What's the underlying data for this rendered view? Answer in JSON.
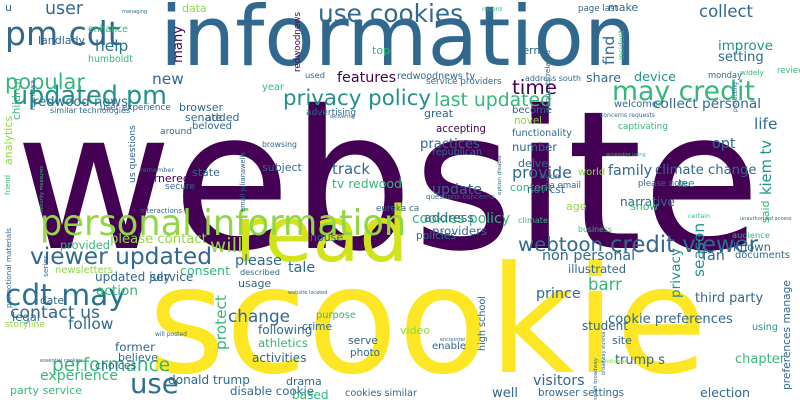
{
  "palette": {
    "dark_purple": "#440154",
    "blue": "#31688e",
    "teal": "#21918c",
    "green": "#35b779",
    "light_green": "#90d743",
    "yellow": "#fde725"
  },
  "words": [
    {
      "t": "website",
      "c": "#440154"
    },
    {
      "t": "scookie",
      "c": "#fde725"
    },
    {
      "t": "information",
      "c": "#31688e"
    },
    {
      "t": "read",
      "c": "#d2e21b"
    },
    {
      "t": "personal information",
      "c": "#90d743"
    },
    {
      "t": "updated pm",
      "c": "#21918c"
    },
    {
      "t": "use cookies",
      "c": "#31688e"
    },
    {
      "t": "may credit",
      "c": "#35b779"
    },
    {
      "t": "pm cdt",
      "c": "#31688e"
    },
    {
      "t": "credit viewer",
      "c": "#31688e"
    },
    {
      "t": "viewer updated",
      "c": "#31688e"
    },
    {
      "t": "cdt may",
      "c": "#2c728e"
    },
    {
      "t": "series",
      "c": "#31688e"
    },
    {
      "t": "use",
      "c": "#2c728e"
    },
    {
      "t": "privacy policy",
      "c": "#21918c"
    },
    {
      "t": "popular",
      "c": "#35b779"
    },
    {
      "t": "time",
      "c": "#440154"
    },
    {
      "t": "last updated",
      "c": "#35b779"
    },
    {
      "t": "webtoon",
      "c": "#31688e"
    },
    {
      "t": "cookies policy",
      "c": "#35b779"
    },
    {
      "t": "third party",
      "c": "#31688e"
    },
    {
      "t": "contact us",
      "c": "#31688e"
    },
    {
      "t": "performance",
      "c": "#35b779"
    },
    {
      "t": "kiem tv",
      "c": "#21918c"
    },
    {
      "t": "cookie preferences",
      "c": "#31688e"
    },
    {
      "t": "will",
      "c": "#90d743"
    },
    {
      "t": "change",
      "c": "#31688e"
    },
    {
      "t": "user",
      "c": "#31688e"
    },
    {
      "t": "collect",
      "c": "#31688e"
    },
    {
      "t": "redwood news",
      "c": "#2c728e"
    },
    {
      "t": "update",
      "c": "#31688e"
    },
    {
      "t": "address",
      "c": "#31688e"
    },
    {
      "t": "barr",
      "c": "#35b779"
    },
    {
      "t": "provide",
      "c": "#31688e"
    },
    {
      "t": "new",
      "c": "#31688e"
    },
    {
      "t": "help",
      "c": "#2c728e"
    },
    {
      "t": "features",
      "c": "#440154"
    },
    {
      "t": "share",
      "c": "#31688e"
    },
    {
      "t": "device",
      "c": "#21918c"
    },
    {
      "t": "life",
      "c": "#31688e"
    },
    {
      "t": "opt",
      "c": "#31688e"
    },
    {
      "t": "find",
      "c": "#31688e"
    },
    {
      "t": "track",
      "c": "#31688e"
    },
    {
      "t": "practices",
      "c": "#31688e"
    },
    {
      "t": "family",
      "c": "#31688e"
    },
    {
      "t": "tv redwood",
      "c": "#35b779"
    },
    {
      "t": "collect personal",
      "c": "#31688e"
    },
    {
      "t": "improve",
      "c": "#21918c"
    },
    {
      "t": "setting",
      "c": "#31688e"
    },
    {
      "t": "climate change",
      "c": "#31688e"
    },
    {
      "t": "non personal",
      "c": "#31688e"
    },
    {
      "t": "illustrated",
      "c": "#31688e"
    },
    {
      "t": "providers",
      "c": "#31688e"
    },
    {
      "t": "privacy",
      "c": "#21918c"
    },
    {
      "t": "season",
      "c": "#21918c"
    },
    {
      "t": "chapter",
      "c": "#35b779"
    },
    {
      "t": "prince",
      "c": "#31688e"
    },
    {
      "t": "action",
      "c": "#35b779"
    },
    {
      "t": "follow",
      "c": "#31688e"
    },
    {
      "t": "experience",
      "c": "#35b779"
    },
    {
      "t": "essential cookies",
      "c": "#31688e"
    },
    {
      "t": "please",
      "c": "#31688e"
    },
    {
      "t": "tale",
      "c": "#31688e"
    },
    {
      "t": "visitors",
      "c": "#31688e"
    },
    {
      "t": "trump s",
      "c": "#31688e"
    },
    {
      "t": "fan",
      "c": "#31688e"
    },
    {
      "t": "known",
      "c": "#31688e"
    },
    {
      "t": "documents",
      "c": "#31688e"
    },
    {
      "t": "audience",
      "c": "#35b779"
    },
    {
      "t": "please contact",
      "c": "#90d743"
    },
    {
      "t": "provided",
      "c": "#35b779"
    },
    {
      "t": "newsletters",
      "c": "#90d743"
    },
    {
      "t": "consent",
      "c": "#35b779"
    },
    {
      "t": "updated july",
      "c": "#31688e"
    },
    {
      "t": "service",
      "c": "#31688e"
    },
    {
      "t": "date",
      "c": "#31688e"
    },
    {
      "t": "legal",
      "c": "#31688e"
    },
    {
      "t": "former",
      "c": "#31688e"
    },
    {
      "t": "following",
      "c": "#31688e"
    },
    {
      "t": "athletics",
      "c": "#35b779"
    },
    {
      "t": "activities",
      "c": "#31688e"
    },
    {
      "t": "donald trump",
      "c": "#31688e"
    },
    {
      "t": "disable cookie",
      "c": "#31688e"
    },
    {
      "t": "cookies similar",
      "c": "#31688e"
    },
    {
      "t": "browser settings",
      "c": "#31688e"
    },
    {
      "t": "party service",
      "c": "#35b779"
    },
    {
      "t": "high school",
      "c": "#31688e"
    },
    {
      "t": "election",
      "c": "#31688e"
    },
    {
      "t": "student",
      "c": "#31688e"
    },
    {
      "t": "using",
      "c": "#21918c"
    },
    {
      "t": "well",
      "c": "#31688e"
    },
    {
      "t": "based",
      "c": "#35b779"
    },
    {
      "t": "enable",
      "c": "#31688e"
    },
    {
      "t": "photo",
      "c": "#31688e"
    },
    {
      "t": "serve",
      "c": "#31688e"
    },
    {
      "t": "crime",
      "c": "#31688e"
    },
    {
      "t": "purpose",
      "c": "#35b779"
    },
    {
      "t": "protect",
      "c": "#35b779"
    },
    {
      "t": "address south",
      "c": "#31688e"
    },
    {
      "t": "redwoodnews tv",
      "c": "#31688e"
    },
    {
      "t": "advertising",
      "c": "#31688e"
    },
    {
      "t": "accepting",
      "c": "#440154"
    },
    {
      "t": "republican",
      "c": "#31688e"
    },
    {
      "t": "functionality",
      "c": "#31688e"
    },
    {
      "t": "number",
      "c": "#31688e"
    },
    {
      "t": "captivating",
      "c": "#35b779"
    },
    {
      "t": "narrative",
      "c": "#31688e"
    },
    {
      "t": "content",
      "c": "#35b779"
    },
    {
      "t": "delve",
      "c": "#31688e"
    },
    {
      "t": "nov cst",
      "c": "#31688e"
    },
    {
      "t": "age",
      "c": "#90d743"
    },
    {
      "t": "hyun",
      "c": "#31688e"
    },
    {
      "t": "climate",
      "c": "#35b779"
    },
    {
      "t": "policies",
      "c": "#31688e"
    },
    {
      "t": "show",
      "c": "#35b779"
    },
    {
      "t": "lee",
      "c": "#21918c"
    },
    {
      "t": "said",
      "c": "#35b779"
    },
    {
      "t": "certain",
      "c": "#35b779"
    },
    {
      "t": "business",
      "c": "#35b779"
    },
    {
      "t": "welcome",
      "c": "#31688e"
    },
    {
      "t": "become",
      "c": "#31688e"
    },
    {
      "t": "great",
      "c": "#31688e"
    },
    {
      "t": "novel",
      "c": "#90d743"
    },
    {
      "t": "widely",
      "c": "#35b779"
    },
    {
      "t": "monday",
      "c": "#31688e"
    },
    {
      "t": "review",
      "c": "#35b779"
    },
    {
      "t": "protecting",
      "c": "#31688e"
    },
    {
      "t": "make",
      "c": "#31688e"
    },
    {
      "t": "incident",
      "c": "#35b779"
    },
    {
      "t": "term",
      "c": "#31688e"
    },
    {
      "t": "record",
      "c": "#35b779"
    },
    {
      "t": "top",
      "c": "#35b779"
    },
    {
      "t": "used",
      "c": "#31688e"
    },
    {
      "t": "year",
      "c": "#35b779"
    },
    {
      "t": "delivering",
      "c": "#31688e"
    },
    {
      "t": "browser",
      "c": "#31688e"
    },
    {
      "t": "senate",
      "c": "#31688e"
    },
    {
      "t": "beloved",
      "c": "#31688e"
    },
    {
      "t": "added",
      "c": "#31688e"
    },
    {
      "t": "around",
      "c": "#31688e"
    },
    {
      "t": "browsing",
      "c": "#31688e"
    },
    {
      "t": "subject",
      "c": "#31688e"
    },
    {
      "t": "state",
      "c": "#31688e"
    },
    {
      "t": "secure",
      "c": "#31688e"
    },
    {
      "t": "remember",
      "c": "#31688e"
    },
    {
      "t": "garnered",
      "c": "#440154"
    },
    {
      "t": "interactions",
      "c": "#31688e"
    },
    {
      "t": "landlady",
      "c": "#31688e"
    },
    {
      "t": "enhance",
      "c": "#35b779"
    },
    {
      "t": "humboldt",
      "c": "#35b779"
    },
    {
      "t": "data",
      "c": "#90d743"
    },
    {
      "t": "managing",
      "c": "#31688e"
    },
    {
      "t": "many",
      "c": "#440154"
    },
    {
      "t": "u",
      "c": "#31688e"
    },
    {
      "t": "friend",
      "c": "#35b779"
    },
    {
      "t": "manhwa",
      "c": "#31688e"
    },
    {
      "t": "children",
      "c": "#35b779"
    },
    {
      "t": "storyline",
      "c": "#90d743"
    },
    {
      "t": "choices",
      "c": "#31688e"
    },
    {
      "t": "described",
      "c": "#31688e"
    },
    {
      "t": "usage",
      "c": "#31688e"
    },
    {
      "t": "website located",
      "c": "#31688e"
    },
    {
      "t": "house",
      "c": "#31688e"
    },
    {
      "t": "drama",
      "c": "#31688e"
    },
    {
      "t": "will posted",
      "c": "#31688e"
    },
    {
      "t": "believe",
      "c": "#31688e"
    },
    {
      "t": "video",
      "c": "#90d743"
    },
    {
      "t": "encounter",
      "c": "#31688e"
    },
    {
      "t": "site",
      "c": "#31688e"
    },
    {
      "t": "candidate",
      "c": "#90d743"
    },
    {
      "t": "option disable",
      "c": "#31688e"
    },
    {
      "t": "please note",
      "c": "#31688e"
    },
    {
      "t": "world",
      "c": "#90d743"
    },
    {
      "t": "accessing using",
      "c": "#35b779"
    },
    {
      "t": "analytics",
      "c": "#90d743"
    },
    {
      "t": "security measures",
      "c": "#35b779"
    },
    {
      "t": "promotional materials",
      "c": "#31688e"
    },
    {
      "t": "preferences manage",
      "c": "#31688e"
    },
    {
      "t": "similar technologies",
      "c": "#31688e"
    },
    {
      "t": "user experience",
      "c": "#31688e"
    },
    {
      "t": "service providers",
      "c": "#31688e"
    },
    {
      "t": "requests related",
      "c": "#31688e"
    },
    {
      "t": "page last",
      "c": "#31688e"
    },
    {
      "t": "concerns requests",
      "c": "#31688e"
    },
    {
      "t": "redwoodnews",
      "c": "#440154"
    },
    {
      "t": "email julianawells",
      "c": "#31688e"
    },
    {
      "t": "us questions",
      "c": "#31688e"
    },
    {
      "t": "questions concerns",
      "c": "#31688e"
    },
    {
      "t": "eureka ca",
      "c": "#31688e"
    },
    {
      "t": "broadway eureka",
      "c": "#31688e"
    },
    {
      "t": "south broadway",
      "c": "#31688e"
    },
    {
      "t": "ca email",
      "c": "#31688e"
    },
    {
      "t": "unauthorized access",
      "c": "#31688e"
    }
  ]
}
